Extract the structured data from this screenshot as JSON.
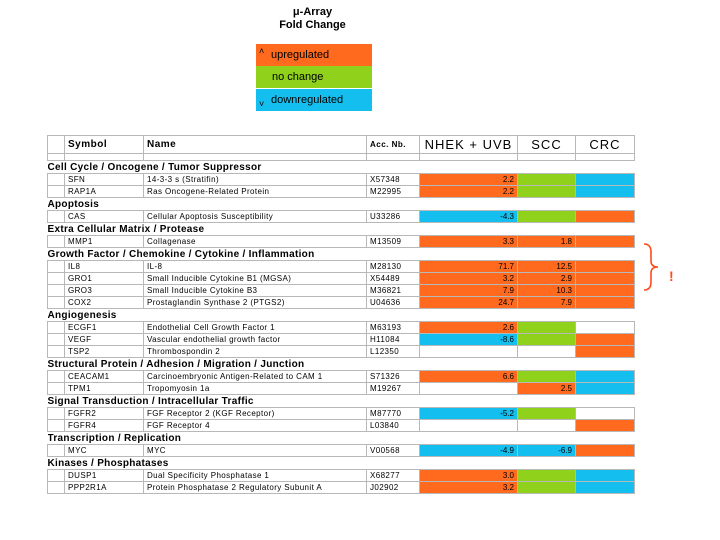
{
  "title": [
    "μ-Array",
    "Fold Change"
  ],
  "colors": {
    "up": "#ff6a1e",
    "nochange": "#8fd11b",
    "down": "#14bff0"
  },
  "legend": [
    {
      "label": "upregulated",
      "mark": "˄",
      "color": "#ff6a1e"
    },
    {
      "label": "no change",
      "mark": "",
      "color": "#8fd11b"
    },
    {
      "label": "downregulated",
      "mark": "˅",
      "color": "#14bff0"
    }
  ],
  "headers": [
    "Symbol",
    "Name",
    "Acc. Nb.",
    "NHEK + UVB",
    "SCC",
    "CRC"
  ],
  "groups": [
    {
      "title": "Cell Cycle / Oncogene / Tumor Suppressor",
      "rows": [
        {
          "symbol": "SFN",
          "name": "14-3-3 s (Stratifin)",
          "acc": "X57348",
          "nhek": "2.2",
          "nhek_c": "up",
          "scc": "",
          "scc_c": "nc",
          "crc_c": "down"
        },
        {
          "symbol": "RAP1A",
          "name": "Ras Oncogene-Related Protein",
          "acc": "M22995",
          "nhek": "2.2",
          "nhek_c": "up",
          "scc": "",
          "scc_c": "nc",
          "crc_c": "down"
        }
      ]
    },
    {
      "title": "Apoptosis",
      "rows": [
        {
          "symbol": "CAS",
          "name": "Cellular Apoptosis Susceptibility",
          "acc": "U33286",
          "nhek": "-4.3",
          "nhek_c": "down",
          "scc": "",
          "scc_c": "nc",
          "crc_c": "up"
        }
      ]
    },
    {
      "title": "Extra Cellular Matrix / Protease",
      "rows": [
        {
          "symbol": "MMP1",
          "name": "Collagenase",
          "acc": "M13509",
          "nhek": "3.3",
          "nhek_c": "up",
          "scc": "1.8",
          "scc_c": "up",
          "crc_c": "up"
        }
      ]
    },
    {
      "title": "Growth Factor / Chemokine / Cytokine / Inflammation",
      "rows": [
        {
          "symbol": "IL8",
          "name": "IL-8",
          "acc": "M28130",
          "nhek": "71.7",
          "nhek_c": "up",
          "scc": "12.5",
          "scc_c": "up",
          "crc_c": "up"
        },
        {
          "symbol": "GRO1",
          "name": "Small Inducible Cytokine B1 (MGSA)",
          "acc": "X54489",
          "nhek": "3.2",
          "nhek_c": "up",
          "scc": "2.9",
          "scc_c": "up",
          "crc_c": "up"
        },
        {
          "symbol": "GRO3",
          "name": "Small Inducible Cytokine B3",
          "acc": "M36821",
          "nhek": "7.9",
          "nhek_c": "up",
          "scc": "10.3",
          "scc_c": "up",
          "crc_c": "up"
        },
        {
          "symbol": "COX2",
          "name": "Prostaglandin Synthase 2 (PTGS2)",
          "acc": "U04636",
          "nhek": "24.7",
          "nhek_c": "up",
          "scc": "7.9",
          "scc_c": "up",
          "crc_c": "up"
        }
      ]
    },
    {
      "title": "Angiogenesis",
      "rows": [
        {
          "symbol": "ECGF1",
          "name": "Endothelial Cell Growth Factor 1",
          "acc": "M63193",
          "nhek": "2.6",
          "nhek_c": "up",
          "scc": "",
          "scc_c": "nc",
          "crc_c": ""
        },
        {
          "symbol": "VEGF",
          "name": "Vascular endothelial growth factor",
          "acc": "H11084",
          "nhek": "-8.6",
          "nhek_c": "down",
          "scc": "",
          "scc_c": "nc",
          "crc_c": "up"
        },
        {
          "symbol": "TSP2",
          "name": "Thrombospondin 2",
          "acc": "L12350",
          "nhek": "",
          "nhek_c": "",
          "scc": "",
          "scc_c": "",
          "crc_c": "up"
        }
      ]
    },
    {
      "title": "Structural Protein / Adhesion / Migration / Junction",
      "rows": [
        {
          "symbol": "CEACAM1",
          "name": "Carcinoembryonic Antigen-Related to CAM 1",
          "acc": "S71326",
          "nhek": "6.6",
          "nhek_c": "up",
          "scc": "",
          "scc_c": "nc",
          "crc_c": "down"
        },
        {
          "symbol": "TPM1",
          "name": "Tropomyosin 1a",
          "acc": "M19267",
          "nhek": "",
          "nhek_c": "",
          "scc": "2.5",
          "scc_c": "up",
          "crc_c": "down"
        }
      ]
    },
    {
      "title": "Signal Transduction / Intracellular Traffic",
      "rows": [
        {
          "symbol": "FGFR2",
          "name": "FGF Receptor 2 (KGF Receptor)",
          "acc": "M87770",
          "nhek": "-5.2",
          "nhek_c": "down",
          "scc": "",
          "scc_c": "nc",
          "crc_c": ""
        },
        {
          "symbol": "FGFR4",
          "name": "FGF Receptor 4",
          "acc": "L03840",
          "nhek": "",
          "nhek_c": "",
          "scc": "",
          "scc_c": "",
          "crc_c": "up"
        }
      ]
    },
    {
      "title": "Transcription / Replication",
      "rows": [
        {
          "symbol": "MYC",
          "name": "MYC",
          "acc": "V00568",
          "nhek": "-4.9",
          "nhek_c": "down",
          "scc": "-6.9",
          "scc_c": "down",
          "crc_c": "up"
        }
      ]
    },
    {
      "title": "Kinases / Phosphatases",
      "rows": [
        {
          "symbol": "DUSP1",
          "name": "Dual Specificity Phosphatase 1",
          "acc": "X68277",
          "nhek": "3.0",
          "nhek_c": "up",
          "scc": "",
          "scc_c": "nc",
          "crc_c": "down"
        },
        {
          "symbol": "PPP2R1A",
          "name": "Protein Phosphatase 2 Regulatory Subunit A",
          "acc": "J02902",
          "nhek": "3.2",
          "nhek_c": "up",
          "scc": "",
          "scc_c": "nc",
          "crc_c": "down"
        }
      ]
    }
  ],
  "annotation": {
    "mark": "!"
  }
}
